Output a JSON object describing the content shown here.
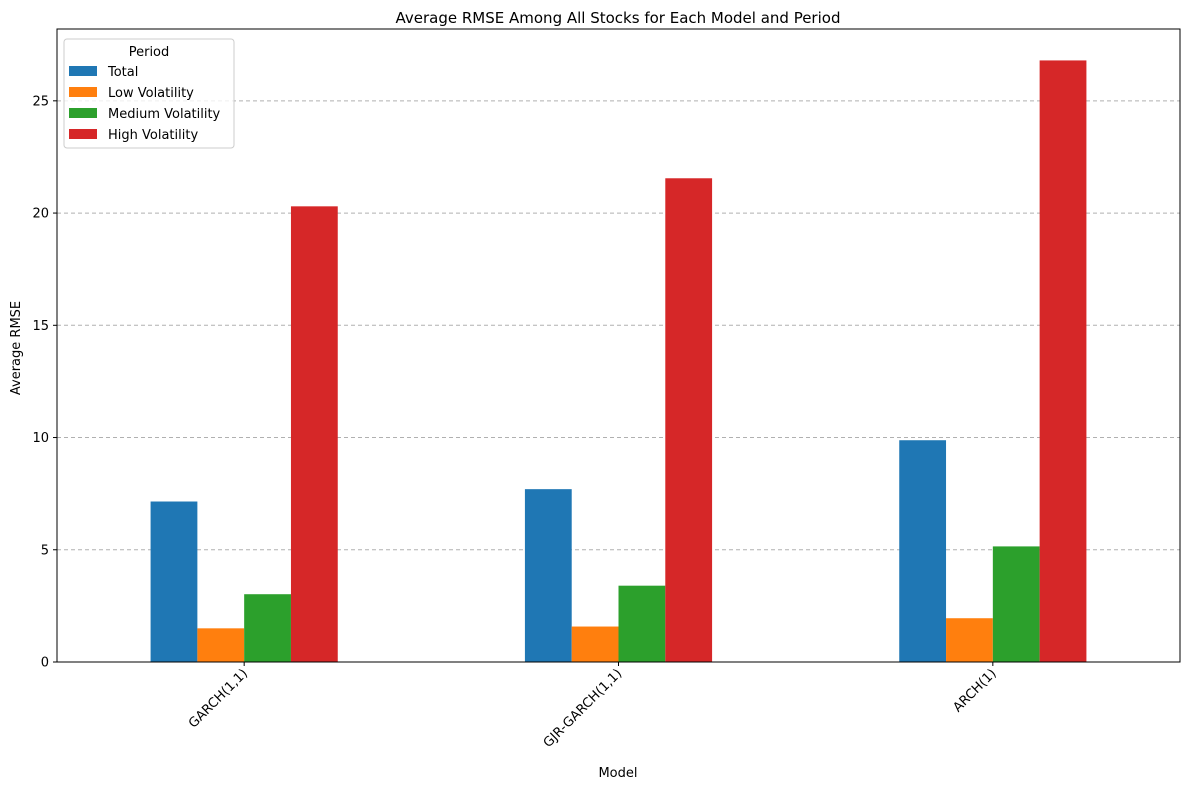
{
  "chart_data": {
    "type": "bar",
    "title": "Average RMSE Among All Stocks for Each Model and Period",
    "xlabel": "Model",
    "ylabel": "Average RMSE",
    "categories": [
      "GARCH(1,1)",
      "GJR-GARCH(1,1)",
      "ARCH(1)"
    ],
    "series": [
      {
        "name": "Total",
        "color": "#1f77b4",
        "values": [
          7.15,
          7.7,
          9.88
        ]
      },
      {
        "name": "Low Volatility",
        "color": "#ff7f0e",
        "values": [
          1.5,
          1.58,
          1.95
        ]
      },
      {
        "name": "Medium Volatility",
        "color": "#2ca02c",
        "values": [
          3.02,
          3.4,
          5.15
        ]
      },
      {
        "name": "High Volatility",
        "color": "#d62728",
        "values": [
          20.3,
          21.55,
          26.8
        ]
      }
    ],
    "ylim": [
      0,
      28.2
    ],
    "yticks": [
      0,
      5,
      10,
      15,
      20,
      25
    ],
    "grid": "y-dashed",
    "legend": {
      "title": "Period",
      "placement": "top-left"
    },
    "xtick_rotation": 45
  }
}
